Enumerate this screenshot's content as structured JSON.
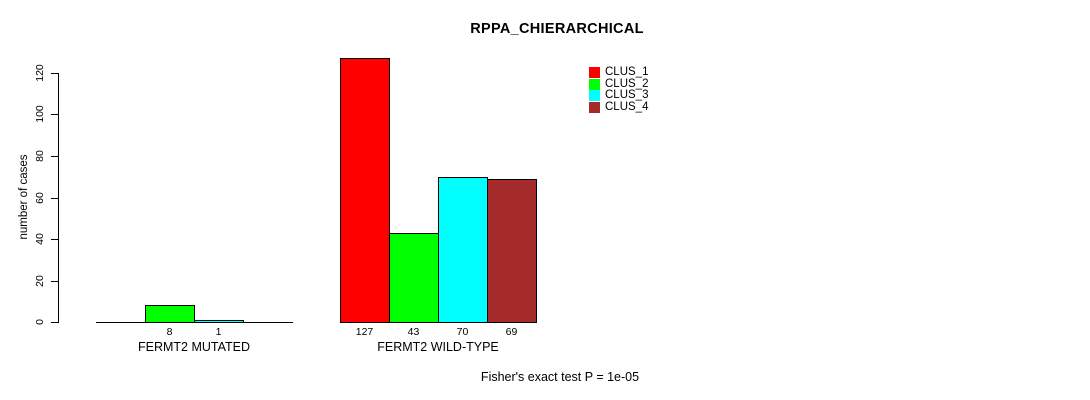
{
  "chart_data": {
    "type": "bar",
    "title": "RPPA_CHIERARCHICAL",
    "ylabel": "number of cases",
    "xlabel": "",
    "yticks": [
      0,
      20,
      40,
      60,
      80,
      100,
      120
    ],
    "ylim": [
      0,
      130
    ],
    "grid": false,
    "legend_position": "top-center-inside",
    "series": [
      {
        "name": "CLUS_1",
        "color": "#ff0000"
      },
      {
        "name": "CLUS_2",
        "color": "#00ff00"
      },
      {
        "name": "CLUS_3",
        "color": "#00ffff"
      },
      {
        "name": "CLUS_4",
        "color": "#a52a2a"
      }
    ],
    "groups": [
      {
        "label": "FERMT2 MUTATED",
        "values": [
          0,
          8,
          1,
          0
        ],
        "bar_labels": [
          "",
          "8",
          "1",
          ""
        ]
      },
      {
        "label": "FERMT2 WILD-TYPE",
        "values": [
          127,
          43,
          70,
          69
        ],
        "bar_labels": [
          "127",
          "43",
          "70",
          "69"
        ]
      }
    ],
    "annotation": "Fisher's exact test P = 1e-05"
  }
}
